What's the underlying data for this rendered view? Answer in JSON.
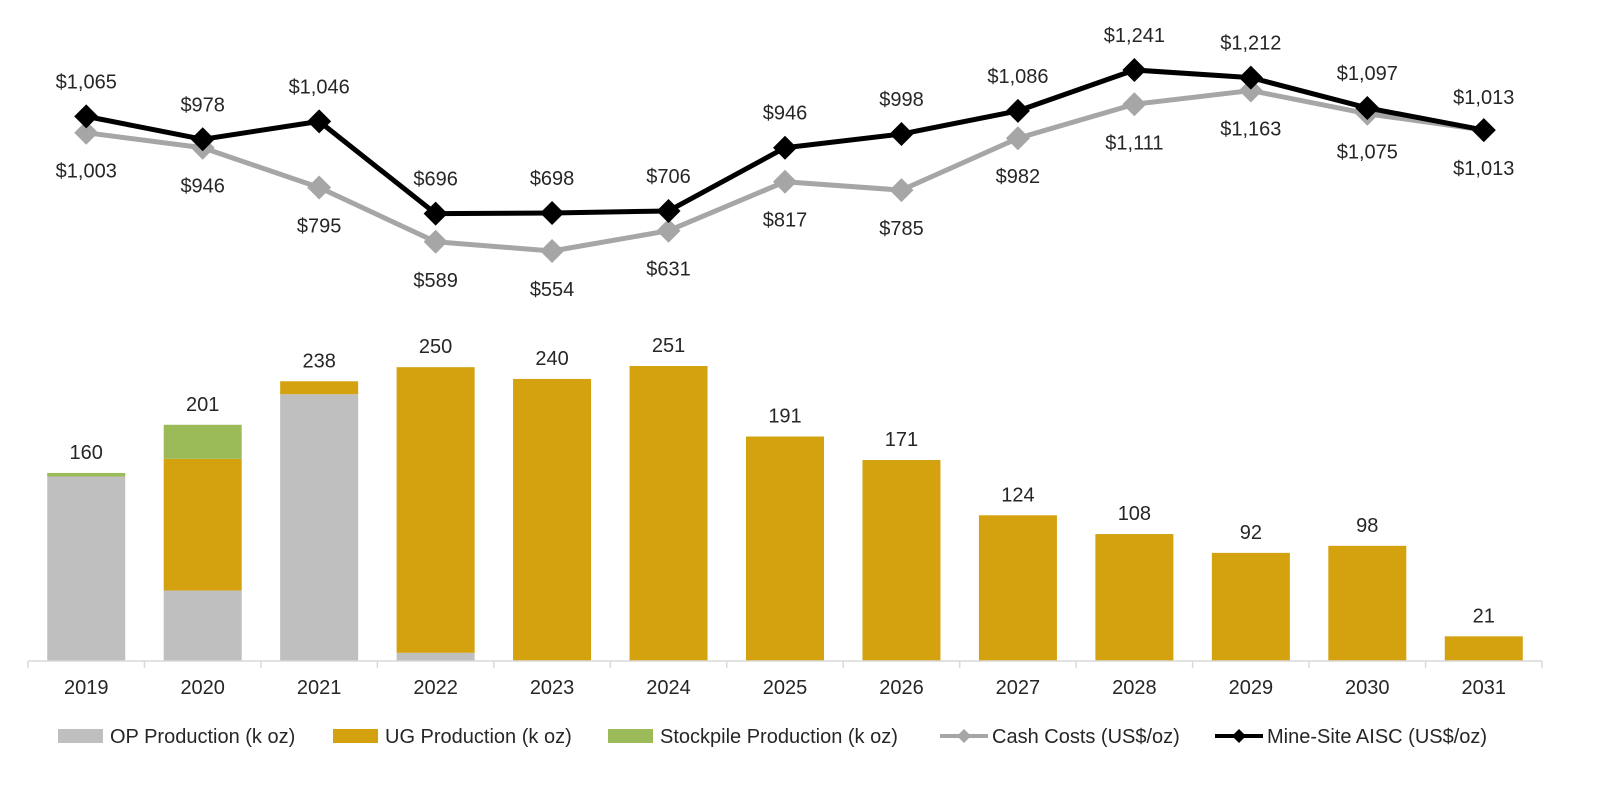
{
  "chart_data": {
    "type": "bar",
    "title": "",
    "xlabel": "",
    "ylabel": "",
    "categories": [
      "2019",
      "2020",
      "2021",
      "2022",
      "2023",
      "2024",
      "2025",
      "2026",
      "2027",
      "2028",
      "2029",
      "2030",
      "2031"
    ],
    "bar_series": [
      {
        "name": "OP Production (k oz)",
        "color": "#BFBFBF",
        "values": [
          157,
          60,
          227,
          7,
          0,
          0,
          0,
          0,
          0,
          0,
          0,
          0,
          0
        ]
      },
      {
        "name": "UG Production (k oz)",
        "color": "#D4A20E",
        "values": [
          0,
          112,
          11,
          243,
          240,
          251,
          191,
          171,
          124,
          108,
          92,
          98,
          21
        ]
      },
      {
        "name": "Stockpile Production (k oz)",
        "color": "#9BBB59",
        "values": [
          3,
          29,
          0,
          0,
          0,
          0,
          0,
          0,
          0,
          0,
          0,
          0,
          0
        ]
      }
    ],
    "bar_totals": [
      "160",
      "201",
      "238",
      "250",
      "240",
      "251",
      "191",
      "171",
      "124",
      "108",
      "92",
      "98",
      "21"
    ],
    "line_series": [
      {
        "name": "Cash Costs (US$/oz)",
        "color": "#A6A6A6",
        "marker": "diamond",
        "values": [
          1003,
          946,
          795,
          589,
          554,
          631,
          817,
          785,
          982,
          1111,
          1163,
          1075,
          1013
        ],
        "labels": [
          "$1,003",
          "$946",
          "$795",
          "$589",
          "$554",
          "$631",
          "$817",
          "$785",
          "$982",
          "$1,111",
          "$1,163",
          "$1,075",
          "$1,013"
        ]
      },
      {
        "name": "Mine-Site AISC (US$/oz)",
        "color": "#000000",
        "marker": "diamond",
        "values": [
          1065,
          978,
          1046,
          696,
          698,
          706,
          946,
          998,
          1086,
          1241,
          1212,
          1097,
          1013
        ],
        "labels": [
          "$1,065",
          "$978",
          "$1,046",
          "$696",
          "$698",
          "$706",
          "$946",
          "$998",
          "$1,086",
          "$1,241",
          "$1,212",
          "$1,097",
          "$1,013"
        ]
      }
    ],
    "bar_ylim": [
      0,
      270
    ],
    "line_ylim": [
      554,
      1241
    ],
    "grid": false,
    "legend_placement": "bottom"
  }
}
